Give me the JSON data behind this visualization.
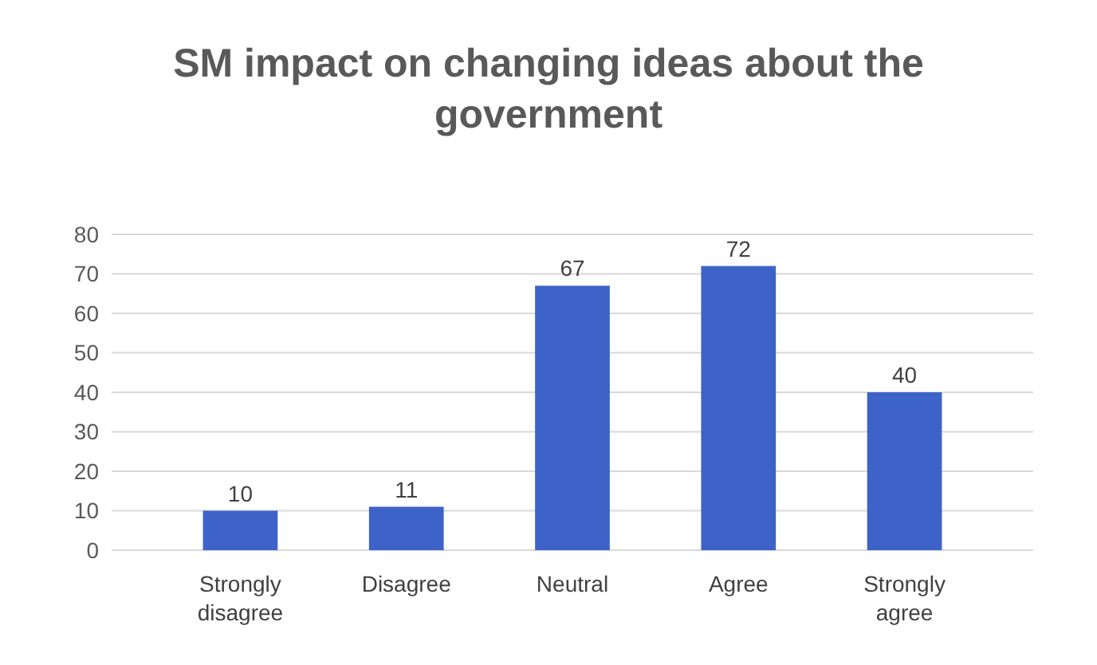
{
  "chart_data": {
    "type": "bar",
    "title": "SM impact on changing ideas about the government",
    "categories": [
      "Strongly disagree",
      "Disagree",
      "Neutral",
      "Agree",
      "Strongly agree"
    ],
    "values": [
      10,
      11,
      67,
      72,
      40
    ],
    "color": "#3d63c9",
    "ylim": [
      0,
      80
    ],
    "yticks": [
      0,
      10,
      20,
      30,
      40,
      50,
      60,
      70,
      80
    ],
    "grid": true,
    "data_labels": true
  }
}
